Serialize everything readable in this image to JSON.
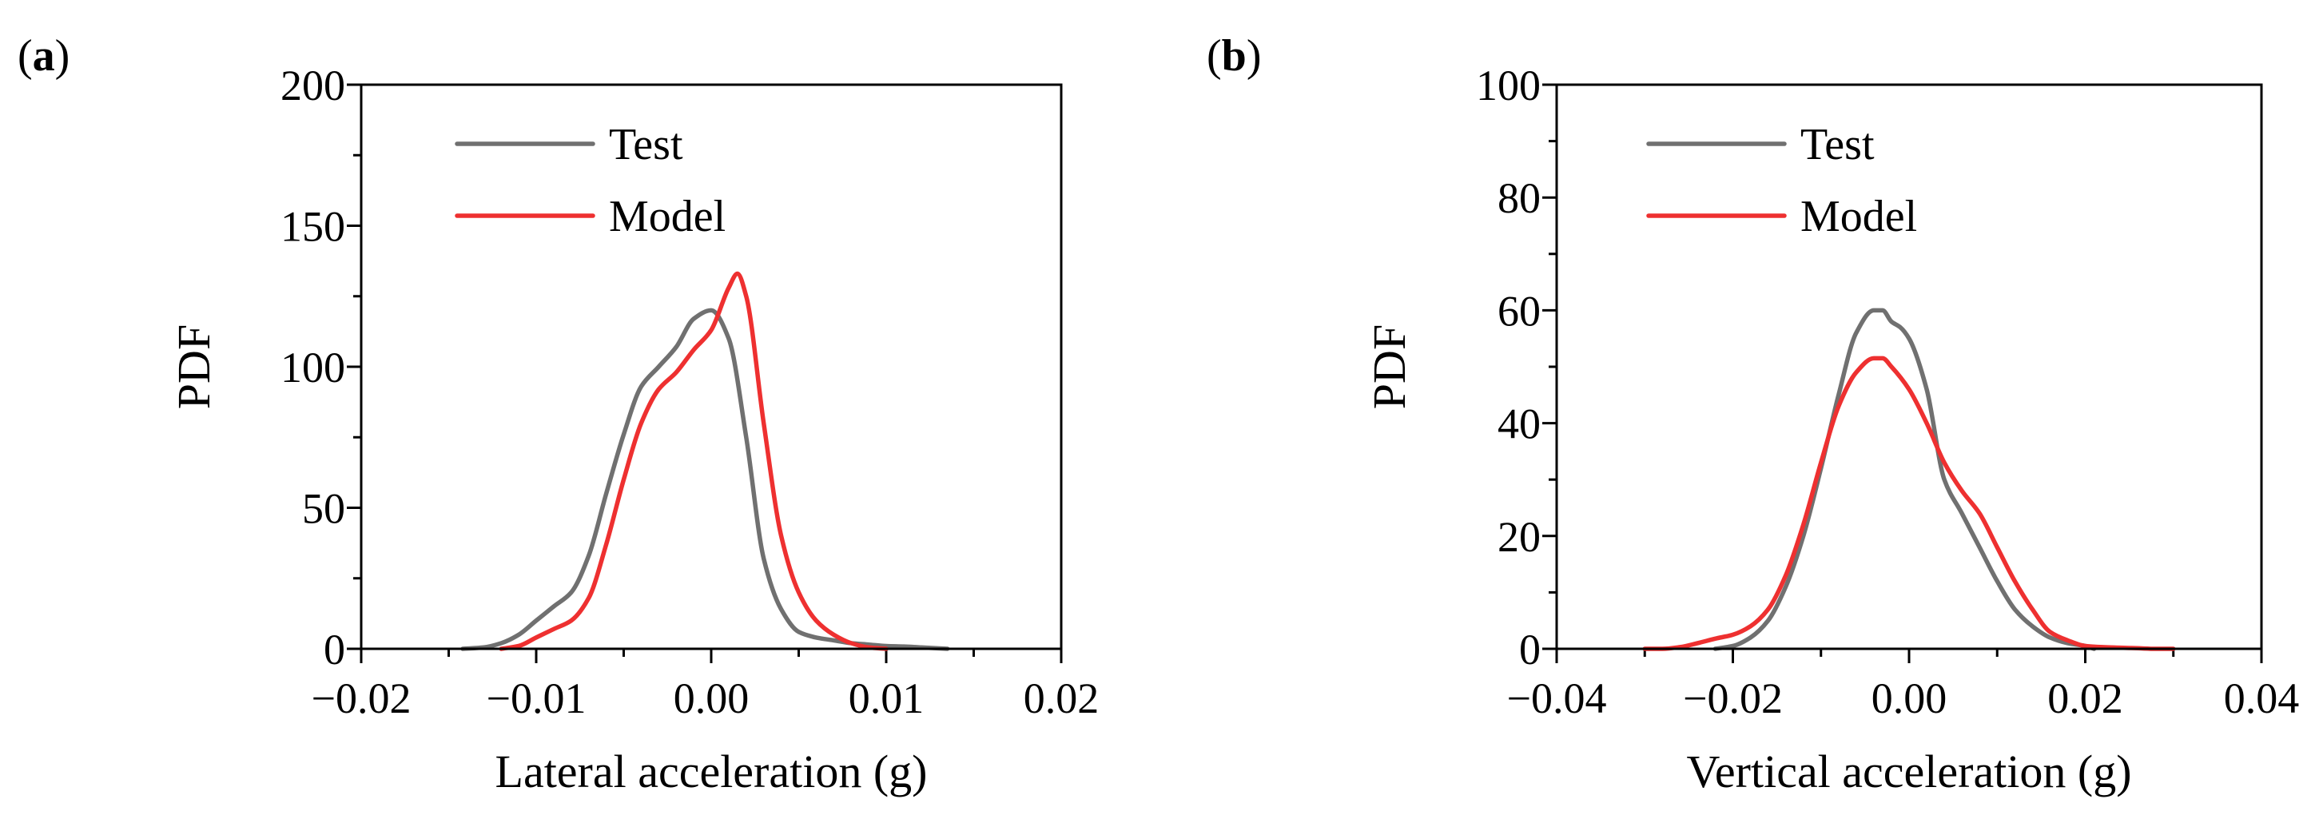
{
  "chart_data": [
    {
      "type": "line",
      "panel_label": "(a)",
      "panel_letter": "a",
      "title": "",
      "xlabel": "Lateral acceleration (g)",
      "ylabel": "PDF",
      "xlim": [
        -0.02,
        0.02
      ],
      "ylim": [
        0,
        200
      ],
      "xticks": [
        -0.02,
        -0.01,
        0.0,
        0.01,
        0.02
      ],
      "xtick_labels": [
        "−0.02",
        "−0.01",
        "0.00",
        "0.01",
        "0.02"
      ],
      "yticks": [
        0,
        50,
        100,
        150,
        200
      ],
      "ytick_labels": [
        "0",
        "50",
        "100",
        "150",
        "200"
      ],
      "legend_position": "top-left",
      "series": [
        {
          "name": "Test",
          "color": "#707070",
          "x": [
            -0.0142,
            -0.013,
            -0.012,
            -0.011,
            -0.01,
            -0.009,
            -0.008,
            -0.007,
            -0.006,
            -0.005,
            -0.004,
            -0.003,
            -0.002,
            -0.001,
            0.0,
            0.001,
            0.002,
            0.003,
            0.004,
            0.005,
            0.006,
            0.007,
            0.008,
            0.009,
            0.01,
            0.011,
            0.012,
            0.0135
          ],
          "y": [
            0,
            0.5,
            2,
            5,
            10,
            15,
            20,
            33,
            55,
            76,
            93,
            100,
            107,
            117,
            120,
            110,
            75,
            32,
            14,
            6,
            4,
            3,
            2,
            1.5,
            1,
            0.8,
            0.5,
            0
          ]
        },
        {
          "name": "Model",
          "color": "#ee3030",
          "x": [
            -0.012,
            -0.011,
            -0.01,
            -0.009,
            -0.008,
            -0.007,
            -0.006,
            -0.005,
            -0.004,
            -0.003,
            -0.002,
            -0.001,
            0.0,
            0.001,
            0.0015,
            0.002,
            0.003,
            0.004,
            0.005,
            0.006,
            0.007,
            0.008,
            0.009,
            0.01
          ],
          "y": [
            0,
            1,
            4,
            7,
            10,
            18,
            37,
            60,
            80,
            92,
            98,
            106,
            113,
            128,
            133,
            125,
            80,
            40,
            20,
            10,
            5,
            2,
            0.5,
            0
          ]
        }
      ]
    },
    {
      "type": "line",
      "panel_label": "(b)",
      "panel_letter": "b",
      "title": "",
      "xlabel": "Vertical acceleration (g)",
      "ylabel": "PDF",
      "xlim": [
        -0.04,
        0.04
      ],
      "ylim": [
        0,
        100
      ],
      "xticks": [
        -0.04,
        -0.02,
        0.0,
        0.02,
        0.04
      ],
      "xtick_labels": [
        "−0.04",
        "−0.02",
        "0.00",
        "0.02",
        "0.04"
      ],
      "yticks": [
        0,
        20,
        40,
        60,
        80,
        100
      ],
      "ytick_labels": [
        "0",
        "20",
        "40",
        "60",
        "80",
        "100"
      ],
      "legend_position": "top-left",
      "series": [
        {
          "name": "Test",
          "color": "#707070",
          "x": [
            -0.022,
            -0.02,
            -0.018,
            -0.016,
            -0.014,
            -0.012,
            -0.01,
            -0.008,
            -0.006,
            -0.004,
            -0.003,
            -0.002,
            -0.001,
            0.0,
            0.002,
            0.004,
            0.006,
            0.008,
            0.01,
            0.012,
            0.014,
            0.016,
            0.018,
            0.02,
            0.021
          ],
          "y": [
            0,
            0.5,
            2,
            5,
            11,
            20,
            32,
            45,
            56,
            60,
            60,
            58,
            57,
            55,
            46,
            30,
            24,
            18,
            12,
            7,
            4,
            2,
            1,
            0.5,
            0
          ]
        },
        {
          "name": "Model",
          "color": "#ee3030",
          "x": [
            -0.03,
            -0.028,
            -0.026,
            -0.024,
            -0.022,
            -0.02,
            -0.018,
            -0.016,
            -0.014,
            -0.012,
            -0.01,
            -0.008,
            -0.006,
            -0.004,
            -0.003,
            -0.002,
            0.0,
            0.002,
            0.004,
            0.006,
            0.008,
            0.01,
            0.012,
            0.014,
            0.016,
            0.018,
            0.02,
            0.022,
            0.024,
            0.026,
            0.028,
            0.03
          ],
          "y": [
            0,
            0,
            0.3,
            1,
            1.8,
            2.5,
            4,
            7,
            13,
            22,
            33,
            43,
            49,
            51.5,
            51.5,
            50,
            46,
            40,
            33,
            28,
            24,
            18,
            12,
            7,
            3,
            1.5,
            0.5,
            0.3,
            0.2,
            0.1,
            0,
            0
          ]
        }
      ]
    }
  ]
}
